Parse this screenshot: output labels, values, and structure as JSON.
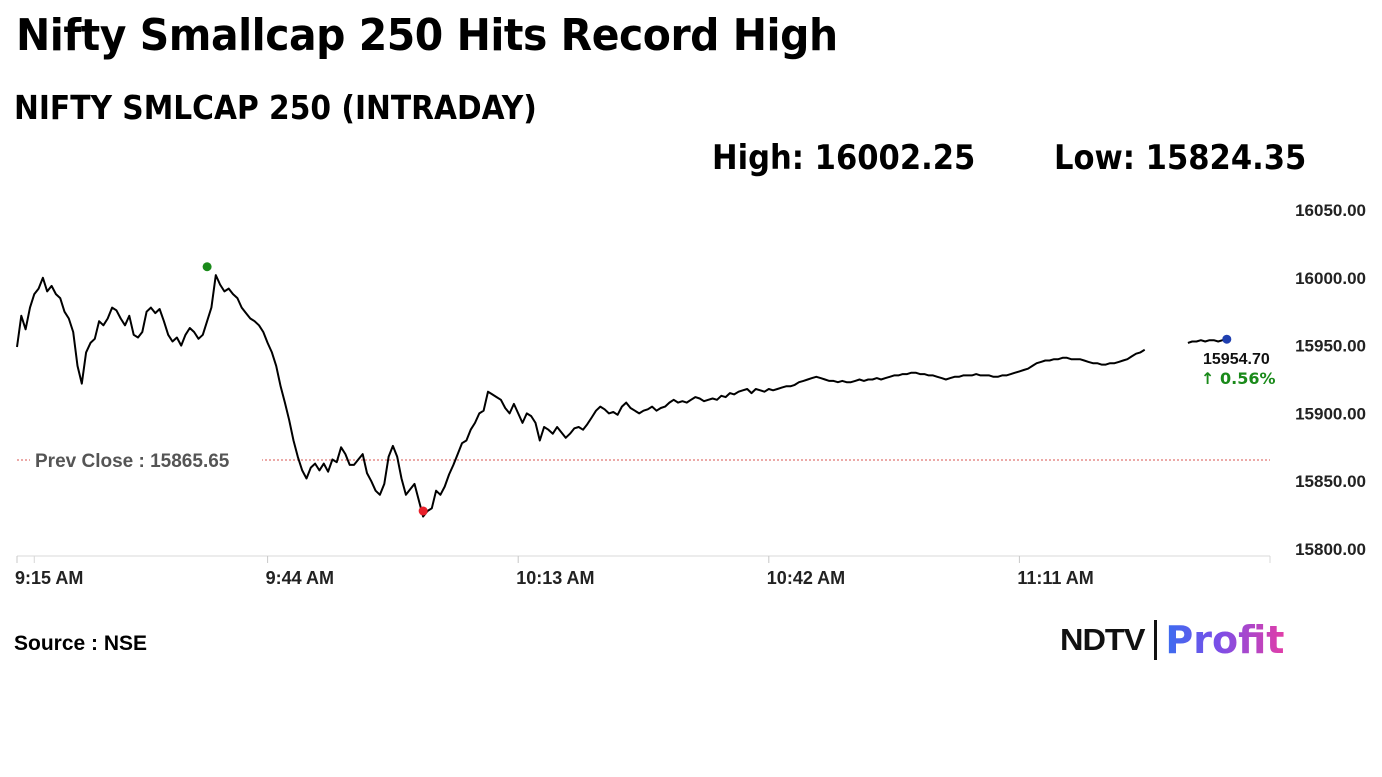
{
  "header": {
    "title": "Nifty Smallcap 250 Hits Record High",
    "subtitle": "NIFTY SMLCAP 250 (INTRADAY)",
    "high_text": "High: 16002.25",
    "low_text": "Low: 15824.35"
  },
  "footer": {
    "source": "Source : NSE",
    "logo_brand": "NDTV",
    "logo_product": "Profit"
  },
  "chart_data": {
    "type": "line",
    "title": "NIFTY SMLCAP 250 (INTRADAY)",
    "ylim": [
      15800,
      16050
    ],
    "y_ticks": [
      {
        "value": 16050,
        "label": "16050.00"
      },
      {
        "value": 16000,
        "label": "16000.00"
      },
      {
        "value": 15950,
        "label": "15950.00"
      },
      {
        "value": 15900,
        "label": "15900.00"
      },
      {
        "value": 15850,
        "label": "15850.00"
      },
      {
        "value": 15800,
        "label": "15800.00"
      }
    ],
    "x_ticks": [
      {
        "t": 0,
        "label": "9:15 AM"
      },
      {
        "t": 29,
        "label": "9:44 AM"
      },
      {
        "t": 58,
        "label": "10:13 AM"
      },
      {
        "t": 87,
        "label": "10:42 AM"
      },
      {
        "t": 116,
        "label": "11:11 AM"
      }
    ],
    "x_max_minutes": 145,
    "prev_close": {
      "value": 15865.65,
      "label": "Prev Close : 15865.65",
      "color": "#d9534f"
    },
    "last": {
      "value": 15954.7,
      "value_label": "15954.70",
      "change_label": "↑ 0.56%",
      "change_color": "#1a8a1a",
      "marker_color": "#1f3fb0"
    },
    "high_marker": {
      "t": 22,
      "value": 16002.25,
      "color": "#1a8a1a"
    },
    "low_marker": {
      "t": 47,
      "value": 15824.35,
      "color": "#e8202a"
    },
    "line_color": "#000000",
    "grid": false,
    "series": [
      {
        "points": [
          [
            0,
            15949
          ],
          [
            0.5,
            15972
          ],
          [
            1,
            15962
          ],
          [
            1.5,
            15978
          ],
          [
            2,
            15988
          ],
          [
            2.5,
            15992
          ],
          [
            3,
            16000
          ],
          [
            3.5,
            15990
          ],
          [
            4,
            15994
          ],
          [
            4.5,
            15988
          ],
          [
            5,
            15985
          ],
          [
            5.5,
            15975
          ],
          [
            6,
            15970
          ],
          [
            6.5,
            15960
          ],
          [
            7,
            15935
          ],
          [
            7.5,
            15922
          ],
          [
            8,
            15945
          ],
          [
            8.5,
            15952
          ],
          [
            9,
            15955
          ],
          [
            9.5,
            15968
          ],
          [
            10,
            15965
          ],
          [
            10.5,
            15970
          ],
          [
            11,
            15978
          ],
          [
            11.5,
            15976
          ],
          [
            12,
            15970
          ],
          [
            12.5,
            15965
          ],
          [
            13,
            15972
          ],
          [
            13.5,
            15958
          ],
          [
            14,
            15956
          ],
          [
            14.5,
            15960
          ],
          [
            15,
            15975
          ],
          [
            15.5,
            15978
          ],
          [
            16,
            15974
          ],
          [
            16.5,
            15977
          ],
          [
            17,
            15968
          ],
          [
            17.5,
            15958
          ],
          [
            18,
            15953
          ],
          [
            18.5,
            15956
          ],
          [
            19,
            15950
          ],
          [
            19.5,
            15958
          ],
          [
            20,
            15963
          ],
          [
            20.5,
            15960
          ],
          [
            21,
            15955
          ],
          [
            21.5,
            15958
          ],
          [
            22,
            15968
          ],
          [
            22.5,
            15978
          ],
          [
            23,
            16002
          ],
          [
            23.5,
            15995
          ],
          [
            24,
            15990
          ],
          [
            24.5,
            15992
          ],
          [
            25,
            15988
          ],
          [
            25.5,
            15985
          ],
          [
            26,
            15978
          ],
          [
            26.5,
            15974
          ],
          [
            27,
            15970
          ],
          [
            27.5,
            15968
          ],
          [
            28,
            15965
          ],
          [
            28.5,
            15960
          ],
          [
            29,
            15952
          ],
          [
            29.5,
            15945
          ],
          [
            30,
            15935
          ],
          [
            30.5,
            15920
          ],
          [
            31,
            15908
          ],
          [
            31.5,
            15895
          ],
          [
            32,
            15880
          ],
          [
            32.5,
            15868
          ],
          [
            33,
            15858
          ],
          [
            33.5,
            15852
          ],
          [
            34,
            15860
          ],
          [
            34.5,
            15863
          ],
          [
            35,
            15858
          ],
          [
            35.5,
            15863
          ],
          [
            36,
            15857
          ],
          [
            36.5,
            15866
          ],
          [
            37,
            15864
          ],
          [
            37.5,
            15875
          ],
          [
            38,
            15870
          ],
          [
            38.5,
            15862
          ],
          [
            39,
            15862
          ],
          [
            39.5,
            15866
          ],
          [
            40,
            15870
          ],
          [
            40.5,
            15856
          ],
          [
            41,
            15850
          ],
          [
            41.5,
            15843
          ],
          [
            42,
            15840
          ],
          [
            42.5,
            15848
          ],
          [
            43,
            15868
          ],
          [
            43.5,
            15876
          ],
          [
            44,
            15868
          ],
          [
            44.5,
            15852
          ],
          [
            45,
            15840
          ],
          [
            45.5,
            15844
          ],
          [
            46,
            15848
          ],
          [
            46.5,
            15836
          ],
          [
            47,
            15824
          ],
          [
            47.5,
            15828
          ],
          [
            48,
            15830
          ],
          [
            48.5,
            15843
          ],
          [
            49,
            15840
          ],
          [
            49.5,
            15846
          ],
          [
            50,
            15855
          ],
          [
            50.5,
            15862
          ],
          [
            51,
            15870
          ],
          [
            51.5,
            15878
          ],
          [
            52,
            15880
          ],
          [
            52.5,
            15888
          ],
          [
            53,
            15893
          ],
          [
            53.5,
            15900
          ],
          [
            54,
            15902
          ],
          [
            54.5,
            15916
          ],
          [
            55,
            15914
          ],
          [
            55.5,
            15912
          ],
          [
            56,
            15910
          ],
          [
            56.5,
            15904
          ],
          [
            57,
            15900
          ],
          [
            57.5,
            15907
          ],
          [
            58,
            15900
          ],
          [
            58.5,
            15893
          ],
          [
            59,
            15900
          ],
          [
            59.5,
            15898
          ],
          [
            60,
            15893
          ],
          [
            60.5,
            15880
          ],
          [
            61,
            15890
          ],
          [
            61.5,
            15888
          ],
          [
            62,
            15885
          ],
          [
            62.5,
            15890
          ],
          [
            63,
            15886
          ],
          [
            63.5,
            15882
          ],
          [
            64,
            15885
          ],
          [
            64.5,
            15889
          ],
          [
            65,
            15890
          ],
          [
            65.5,
            15888
          ],
          [
            66,
            15892
          ],
          [
            66.5,
            15897
          ],
          [
            67,
            15902
          ],
          [
            67.5,
            15905
          ],
          [
            68,
            15903
          ],
          [
            68.5,
            15900
          ],
          [
            69,
            15901
          ],
          [
            69.5,
            15899
          ],
          [
            70,
            15905
          ],
          [
            70.5,
            15908
          ],
          [
            71,
            15904
          ],
          [
            71.5,
            15902
          ],
          [
            72,
            15900
          ],
          [
            72.5,
            15902
          ],
          [
            73,
            15903
          ],
          [
            73.5,
            15905
          ],
          [
            74,
            15902
          ],
          [
            74.5,
            15904
          ],
          [
            75,
            15905
          ],
          [
            75.5,
            15908
          ],
          [
            76,
            15910
          ],
          [
            76.5,
            15908
          ],
          [
            77,
            15909
          ],
          [
            77.5,
            15908
          ],
          [
            78,
            15910
          ],
          [
            78.5,
            15912
          ],
          [
            79,
            15911
          ],
          [
            79.5,
            15909
          ],
          [
            80,
            15910
          ],
          [
            80.5,
            15911
          ],
          [
            81,
            15910
          ],
          [
            81.5,
            15913
          ],
          [
            82,
            15912
          ],
          [
            82.5,
            15915
          ],
          [
            83,
            15914
          ],
          [
            83.5,
            15916
          ],
          [
            84,
            15917
          ],
          [
            84.5,
            15918
          ],
          [
            85,
            15915
          ],
          [
            85.5,
            15918
          ],
          [
            86,
            15917
          ],
          [
            86.5,
            15916
          ],
          [
            87,
            15918
          ],
          [
            87.5,
            15917
          ],
          [
            88,
            15918
          ],
          [
            88.5,
            15919
          ],
          [
            89,
            15920
          ],
          [
            89.5,
            15920
          ],
          [
            90,
            15921
          ],
          [
            90.5,
            15923
          ],
          [
            91,
            15924
          ],
          [
            91.5,
            15925
          ],
          [
            92,
            15926
          ],
          [
            92.5,
            15927
          ],
          [
            93,
            15926
          ],
          [
            93.5,
            15925
          ],
          [
            94,
            15924
          ],
          [
            94.5,
            15924
          ],
          [
            95,
            15923
          ],
          [
            95.5,
            15924
          ],
          [
            96,
            15923
          ],
          [
            96.5,
            15923
          ],
          [
            97,
            15924
          ],
          [
            97.5,
            15925
          ],
          [
            98,
            15924
          ],
          [
            98.5,
            15925
          ],
          [
            99,
            15925
          ],
          [
            99.5,
            15926
          ],
          [
            100,
            15925
          ],
          [
            100.5,
            15926
          ],
          [
            101,
            15927
          ],
          [
            101.5,
            15928
          ],
          [
            102,
            15928
          ],
          [
            102.5,
            15929
          ],
          [
            103,
            15929
          ],
          [
            103.5,
            15930
          ],
          [
            104,
            15930
          ],
          [
            104.5,
            15929
          ],
          [
            105,
            15929
          ],
          [
            105.5,
            15928
          ],
          [
            106,
            15928
          ],
          [
            106.5,
            15927
          ],
          [
            107,
            15926
          ],
          [
            107.5,
            15925
          ],
          [
            108,
            15926
          ],
          [
            108.5,
            15927
          ],
          [
            109,
            15927
          ],
          [
            109.5,
            15928
          ],
          [
            110,
            15928
          ],
          [
            110.5,
            15928
          ],
          [
            111,
            15929
          ],
          [
            111.5,
            15928
          ],
          [
            112,
            15928
          ],
          [
            112.5,
            15928
          ],
          [
            113,
            15927
          ],
          [
            113.5,
            15927
          ],
          [
            114,
            15928
          ],
          [
            114.5,
            15928
          ],
          [
            115,
            15929
          ],
          [
            115.5,
            15930
          ],
          [
            116,
            15931
          ],
          [
            116.5,
            15932
          ],
          [
            117,
            15933
          ],
          [
            117.5,
            15935
          ],
          [
            118,
            15937
          ],
          [
            118.5,
            15938
          ],
          [
            119,
            15939
          ],
          [
            119.5,
            15939
          ],
          [
            120,
            15940
          ],
          [
            120.5,
            15940
          ],
          [
            121,
            15941
          ],
          [
            121.5,
            15941
          ],
          [
            122,
            15940
          ],
          [
            122.5,
            15940
          ],
          [
            123,
            15940
          ],
          [
            123.5,
            15939
          ],
          [
            124,
            15938
          ],
          [
            124.5,
            15937
          ],
          [
            125,
            15937
          ],
          [
            125.5,
            15936
          ],
          [
            126,
            15936
          ],
          [
            126.5,
            15937
          ],
          [
            127,
            15937
          ],
          [
            127.5,
            15938
          ],
          [
            128,
            15939
          ],
          [
            128.5,
            15940
          ],
          [
            129,
            15942
          ],
          [
            129.5,
            15944
          ],
          [
            130,
            15945
          ],
          [
            130.5,
            15947
          ],
          [
            135.5,
            15952
          ],
          [
            136,
            15953
          ],
          [
            136.5,
            15953
          ],
          [
            137,
            15954
          ],
          [
            137.5,
            15953
          ],
          [
            138,
            15954
          ],
          [
            138.5,
            15954
          ],
          [
            139,
            15953
          ],
          [
            139.5,
            15954
          ],
          [
            140,
            15954.7
          ]
        ]
      }
    ]
  }
}
